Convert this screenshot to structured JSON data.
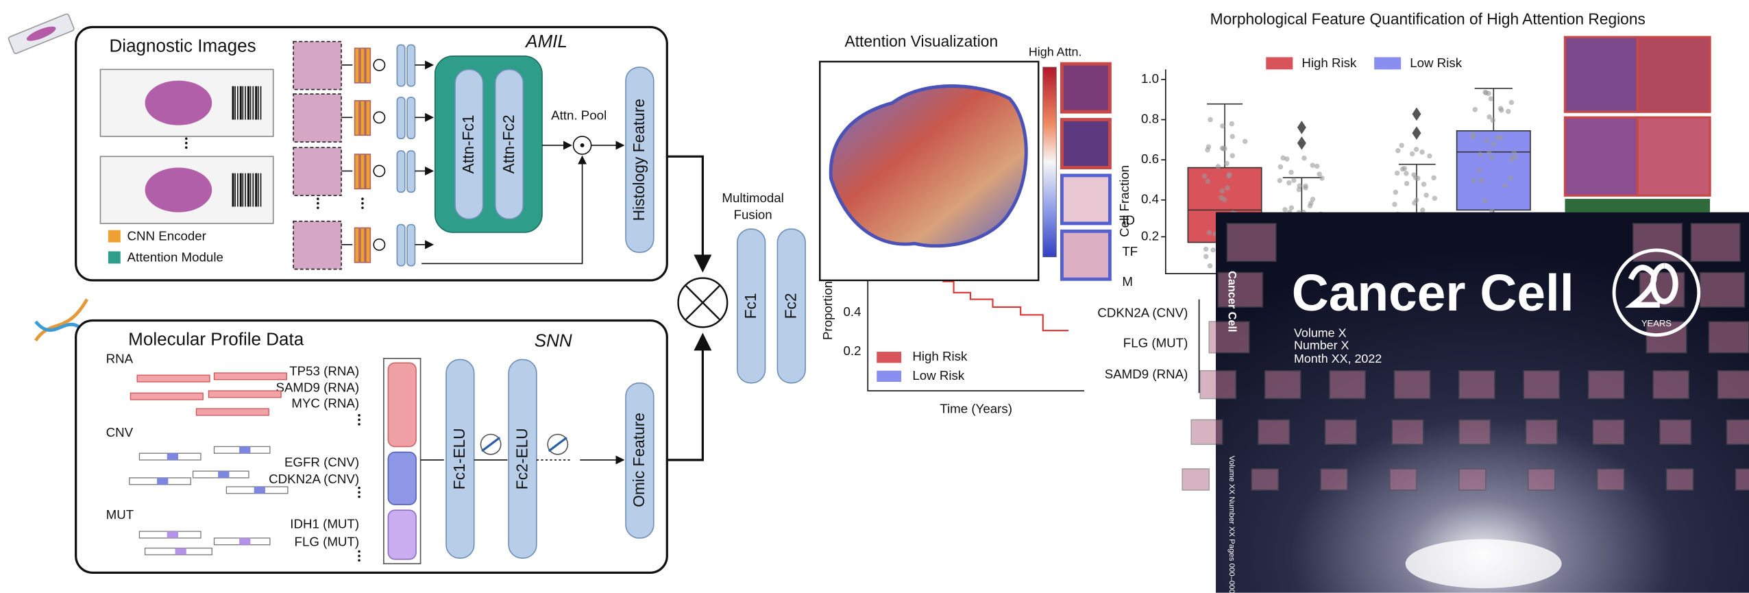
{
  "diagnostic_panel": {
    "title": "Diagnostic Images",
    "model": "AMIL",
    "legend": [
      "CNN Encoder",
      "Attention Module"
    ],
    "blocks": [
      "Attn-Fc1",
      "Attn-Fc2"
    ],
    "pool_label": "Attn. Pool",
    "output": "Histology Feature"
  },
  "molecular_panel": {
    "title": "Molecular Profile Data",
    "model": "SNN",
    "groups": [
      {
        "name": "RNA",
        "genes": [
          "TP53 (RNA)",
          "SAMD9 (RNA)",
          "MYC (RNA)"
        ]
      },
      {
        "name": "CNV",
        "genes": [
          "EGFR (CNV)",
          "CDKN2A (CNV)"
        ]
      },
      {
        "name": "MUT",
        "genes": [
          "IDH1 (MUT)",
          "FLG (MUT)"
        ]
      }
    ],
    "layers": [
      "Fc1-ELU",
      "Fc2-ELU"
    ],
    "output": "Omic Feature"
  },
  "fusion": {
    "title": [
      "Multimodal",
      "Fusion"
    ],
    "layers": [
      "Fc1",
      "Fc2"
    ]
  },
  "attention": {
    "title": "Attention Visualization",
    "colorbar_label": "High Attn."
  },
  "km_plot": {
    "y_label": "Proportion",
    "yticks": [
      "0.4",
      "0.2"
    ],
    "legend": [
      "High Risk",
      "Low Risk"
    ],
    "x_label": "Time (Years)"
  },
  "morph_panel": {
    "title": "Morphological Feature Quantification of High Attention Regions",
    "legend": [
      "High Risk",
      "Low Risk"
    ],
    "y_label": "Cell Fraction",
    "yticks": [
      "1.0",
      "0.8",
      "0.6",
      "0.4",
      "0.2"
    ],
    "row_labels": [
      "ID",
      "TF",
      "M"
    ],
    "genes": [
      "CDKN2A (CNV)",
      "FLG (MUT)",
      "SAMD9 (RNA)"
    ]
  },
  "cover": {
    "journal": "Cancer Cell",
    "issue": [
      "Volume X",
      "Number X",
      "Month XX, 2022"
    ],
    "badge": "YEARS",
    "spine_title": "Cancer Cell",
    "spine_text": "Volume XX Number XX Pages 000–000"
  }
}
